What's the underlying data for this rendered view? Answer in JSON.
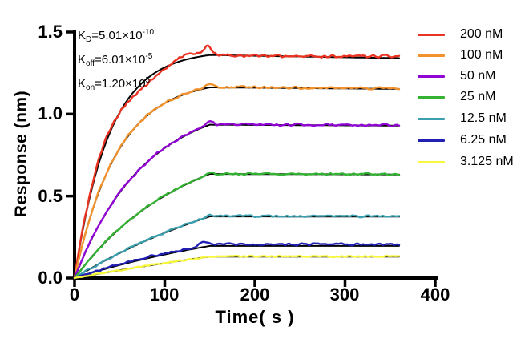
{
  "chart_data": {
    "type": "line",
    "description": "Binding kinetics sensorgram (response vs time) with association phase 0-150 s and dissociation phase 150-360 s; noisy colored data traces with black fitted curves",
    "x_axis": {
      "title": "Time( s )",
      "range": [
        0,
        400
      ],
      "ticks": [
        {
          "label": "0",
          "value": 0
        },
        {
          "label": "100",
          "value": 100
        },
        {
          "label": "200",
          "value": 200
        },
        {
          "label": "300",
          "value": 300
        },
        {
          "label": "400",
          "value": 400
        }
      ]
    },
    "y_axis": {
      "title": "Response (nm)",
      "range": [
        0,
        1.5
      ],
      "ticks": [
        {
          "label": "1.5",
          "value": 1.5
        },
        {
          "label": "1.0",
          "value": 1.0
        },
        {
          "label": "0.5",
          "value": 0.5
        },
        {
          "label": "0.0",
          "value": 0.0
        }
      ]
    },
    "annotation": [
      {
        "pre": "K",
        "sub": "D",
        "mid": "=5.01×10",
        "sup": "-10"
      },
      {
        "pre": "K",
        "sub": "off",
        "mid": "=6.01×10",
        "sup": "-5"
      },
      {
        "pre": "K",
        "sub": "on",
        "mid": "=1.20×10",
        "sup": "5"
      }
    ],
    "phases": {
      "association_end_s": 150,
      "curve_end_s": 360
    },
    "fit_color": "#000000",
    "series": [
      {
        "label": "200 nM",
        "color": "#ea3423",
        "r150": 1.36,
        "k": 0.026,
        "fit_drop": 0.014,
        "data_level": 1.357,
        "data_drop": 0.003,
        "overshoot": 0.05,
        "o_center": 148,
        "o_width": 6,
        "noise": 0.011,
        "wobble": {
          "amp": 0.03,
          "period": 105,
          "phase": 0.2
        }
      },
      {
        "label": "100 nM",
        "color": "#f0922e",
        "r150": 1.163,
        "k": 0.021,
        "fit_drop": 0.008,
        "data_level": 1.165,
        "data_drop": 0.007,
        "overshoot": 0.014,
        "o_center": 149,
        "o_width": 5,
        "noise": 0.009
      },
      {
        "label": "50 nM",
        "color": "#9105d4",
        "r150": 0.935,
        "k": 0.013,
        "fit_drop": 0.006,
        "data_level": 0.937,
        "data_drop": 0.005,
        "overshoot": 0.018,
        "o_center": 149,
        "o_width": 5,
        "noise": 0.009
      },
      {
        "label": "25 nM",
        "color": "#33b233",
        "r150": 0.635,
        "k": 0.0082,
        "fit_drop": 0.005,
        "data_level": 0.636,
        "data_drop": 0.004,
        "overshoot": 0.008,
        "o_center": 149,
        "o_width": 5,
        "noise": 0.008
      },
      {
        "label": "12.5 nM",
        "color": "#3b9fad",
        "r150": 0.376,
        "k": 0.0042,
        "fit_drop": 0.004,
        "data_level": 0.378,
        "data_drop": 0.003,
        "overshoot": 0.006,
        "o_center": 148,
        "o_width": 5,
        "noise": 0.007
      },
      {
        "label": "6.25 nM",
        "color": "#2120b2",
        "r150": 0.196,
        "k": 0.0042,
        "fit_drop": 0.0,
        "data_level": 0.206,
        "data_drop": 0.0,
        "overshoot": 0.02,
        "o_center": 144,
        "o_width": 8,
        "noise": 0.008
      },
      {
        "label": "3.125 nM",
        "color": "#f7f73e",
        "r150": 0.131,
        "k": 0.0018,
        "fit_drop": 0.003,
        "data_level": 0.132,
        "data_drop": 0.003,
        "overshoot": 0.004,
        "o_center": 148,
        "o_width": 5,
        "noise": 0.006
      }
    ],
    "legend_position": "right"
  }
}
